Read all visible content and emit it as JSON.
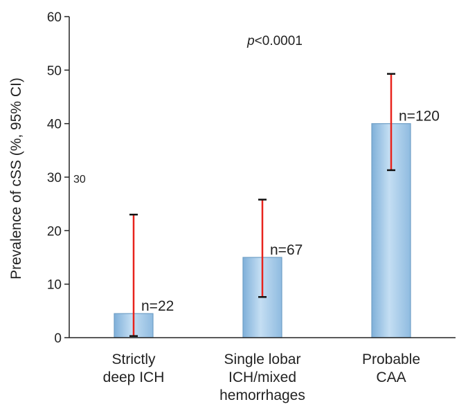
{
  "chart_data": {
    "type": "bar",
    "title": "",
    "xlabel": "",
    "ylabel": "Prevalence of cSS (%, 95% CI)",
    "ylim": [
      0,
      60
    ],
    "yticks": [
      0,
      10,
      20,
      30,
      40,
      50,
      60
    ],
    "grid": false,
    "categories": [
      [
        "Strictly",
        "deep ICH"
      ],
      [
        "Single lobar",
        "ICH/mixed",
        "hemorrhages"
      ],
      [
        "Probable",
        "CAA"
      ]
    ],
    "values": [
      4.5,
      15,
      40
    ],
    "ci_low": [
      0.3,
      7.6,
      31.3
    ],
    "ci_high": [
      23,
      25.8,
      49.3
    ],
    "data_labels": [
      "n=22",
      "n=67",
      "n=120"
    ],
    "annotation": {
      "prefix": "p",
      "text": "<0.0001"
    },
    "stray_label": "30",
    "colors": {
      "bar_fill": "#a9cde8",
      "bar_edge": "#6f9fc6",
      "error_bar": "#e8231c",
      "cap": "#111111",
      "axis": "#222222"
    }
  }
}
